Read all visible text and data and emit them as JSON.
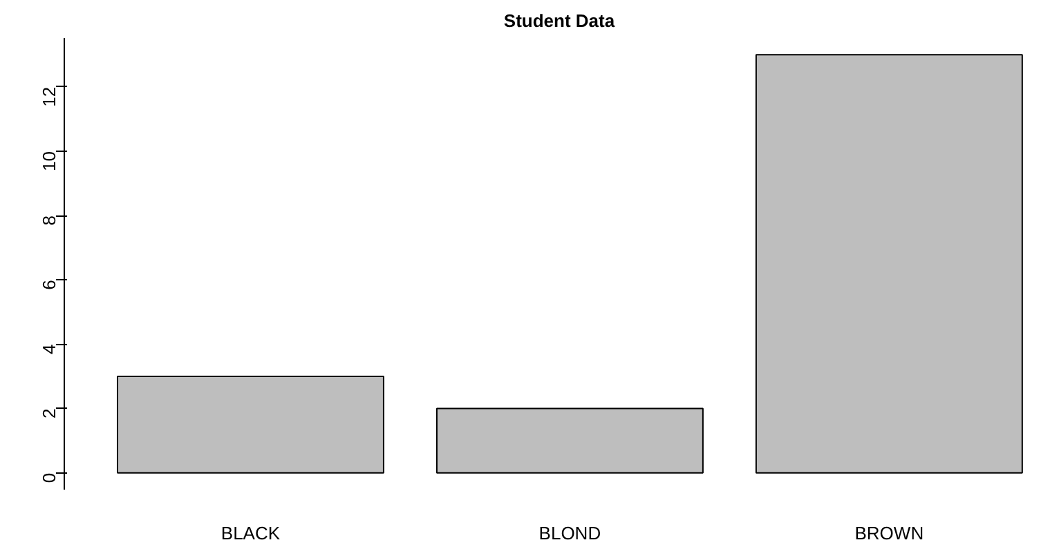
{
  "chart_data": {
    "type": "bar",
    "title": "Student Data",
    "categories": [
      "BLACK",
      "BLOND",
      "BROWN"
    ],
    "values": [
      3,
      2,
      13
    ],
    "color": "#bebebe",
    "ylim": [
      -0.52,
      13.52
    ],
    "yticks": [
      0,
      2,
      4,
      6,
      8,
      10,
      12
    ],
    "grid": false
  }
}
